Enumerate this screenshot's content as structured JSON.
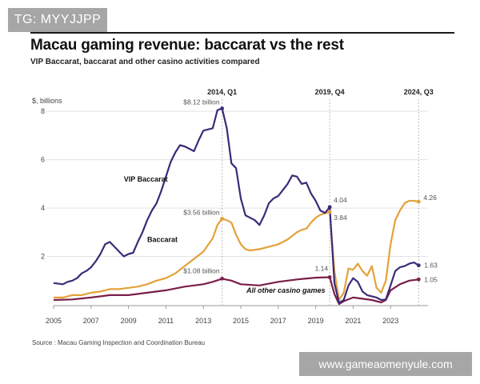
{
  "watermark_top": "TG: MYYJJPP",
  "watermark_bottom": "www.gameaomenyule.com",
  "title": "Macau gaming revenue: baccarat vs the rest",
  "subtitle": "VIP Baccarat, baccarat and other casino activities compared",
  "source": "Source : Macau Gaming Inspection and Coordination Bureau",
  "colors": {
    "vip": "#3d2a78",
    "baccarat": "#e3a23a",
    "other": "#7a1f4a",
    "grid": "#e3e3e3",
    "marker_line": "#bdbdbd"
  },
  "chart_data": {
    "type": "line",
    "title": "Macau gaming revenue: baccarat vs the rest",
    "subtitle": "VIP Baccarat, baccarat and other casino activities compared",
    "ylabel": "$, billions",
    "ylim": [
      0,
      8.7
    ],
    "xlim": [
      2005,
      2025
    ],
    "grid": true,
    "y_ticks": [
      2,
      4,
      6,
      8
    ],
    "x_ticks": [
      "2005",
      "2007",
      "2009",
      "2011",
      "2013",
      "2015",
      "2017",
      "2019",
      "2021",
      "2023"
    ],
    "x_tick_values": [
      2005,
      2007,
      2009,
      2011,
      2013,
      2015,
      2017,
      2019,
      2021,
      2023
    ],
    "period_markers": [
      {
        "x": 2014.0,
        "label": "2014, Q1"
      },
      {
        "x": 2019.75,
        "label": "2019, Q4"
      },
      {
        "x": 2024.5,
        "label": "2024, Q3"
      }
    ],
    "series": [
      {
        "key": "vip",
        "name": "VIP Baccarat",
        "values": [
          [
            2005.0,
            0.9
          ],
          [
            2005.5,
            0.85
          ],
          [
            2005.75,
            0.95
          ],
          [
            2006.0,
            1.0
          ],
          [
            2006.25,
            1.1
          ],
          [
            2006.5,
            1.3
          ],
          [
            2006.75,
            1.4
          ],
          [
            2007.0,
            1.55
          ],
          [
            2007.25,
            1.8
          ],
          [
            2007.5,
            2.1
          ],
          [
            2007.75,
            2.5
          ],
          [
            2008.0,
            2.6
          ],
          [
            2008.25,
            2.4
          ],
          [
            2008.5,
            2.2
          ],
          [
            2008.75,
            2.0
          ],
          [
            2009.0,
            2.1
          ],
          [
            2009.25,
            2.15
          ],
          [
            2009.5,
            2.6
          ],
          [
            2009.75,
            3.0
          ],
          [
            2010.0,
            3.5
          ],
          [
            2010.25,
            3.9
          ],
          [
            2010.5,
            4.2
          ],
          [
            2010.75,
            4.7
          ],
          [
            2011.0,
            5.3
          ],
          [
            2011.25,
            5.9
          ],
          [
            2011.5,
            6.3
          ],
          [
            2011.75,
            6.6
          ],
          [
            2012.0,
            6.55
          ],
          [
            2012.25,
            6.45
          ],
          [
            2012.5,
            6.35
          ],
          [
            2012.75,
            6.8
          ],
          [
            2013.0,
            7.2
          ],
          [
            2013.25,
            7.25
          ],
          [
            2013.5,
            7.3
          ],
          [
            2013.75,
            8.05
          ],
          [
            2014.0,
            8.12
          ],
          [
            2014.25,
            7.3
          ],
          [
            2014.5,
            5.85
          ],
          [
            2014.75,
            5.65
          ],
          [
            2015.0,
            4.4
          ],
          [
            2015.25,
            3.7
          ],
          [
            2015.5,
            3.6
          ],
          [
            2015.75,
            3.5
          ],
          [
            2016.0,
            3.3
          ],
          [
            2016.25,
            3.7
          ],
          [
            2016.5,
            4.2
          ],
          [
            2016.75,
            4.4
          ],
          [
            2017.0,
            4.5
          ],
          [
            2017.25,
            4.75
          ],
          [
            2017.5,
            5.0
          ],
          [
            2017.75,
            5.35
          ],
          [
            2018.0,
            5.3
          ],
          [
            2018.25,
            5.0
          ],
          [
            2018.5,
            5.05
          ],
          [
            2018.75,
            4.6
          ],
          [
            2019.0,
            4.3
          ],
          [
            2019.25,
            3.9
          ],
          [
            2019.5,
            3.8
          ],
          [
            2019.75,
            4.04
          ],
          [
            2020.0,
            0.9
          ],
          [
            2020.25,
            0.08
          ],
          [
            2020.5,
            0.2
          ],
          [
            2020.75,
            0.8
          ],
          [
            2021.0,
            1.1
          ],
          [
            2021.25,
            0.95
          ],
          [
            2021.5,
            0.55
          ],
          [
            2021.75,
            0.4
          ],
          [
            2022.0,
            0.35
          ],
          [
            2022.25,
            0.3
          ],
          [
            2022.5,
            0.2
          ],
          [
            2022.75,
            0.22
          ],
          [
            2023.0,
            0.8
          ],
          [
            2023.25,
            1.4
          ],
          [
            2023.5,
            1.55
          ],
          [
            2023.75,
            1.6
          ],
          [
            2024.0,
            1.7
          ],
          [
            2024.25,
            1.75
          ],
          [
            2024.5,
            1.63
          ]
        ]
      },
      {
        "key": "baccarat",
        "name": "Baccarat",
        "values": [
          [
            2005.0,
            0.3
          ],
          [
            2005.5,
            0.3
          ],
          [
            2006.0,
            0.4
          ],
          [
            2006.5,
            0.4
          ],
          [
            2007.0,
            0.5
          ],
          [
            2007.5,
            0.55
          ],
          [
            2008.0,
            0.65
          ],
          [
            2008.5,
            0.65
          ],
          [
            2009.0,
            0.7
          ],
          [
            2009.5,
            0.75
          ],
          [
            2010.0,
            0.85
          ],
          [
            2010.5,
            1.0
          ],
          [
            2011.0,
            1.1
          ],
          [
            2011.5,
            1.3
          ],
          [
            2012.0,
            1.6
          ],
          [
            2012.5,
            1.9
          ],
          [
            2013.0,
            2.2
          ],
          [
            2013.5,
            2.75
          ],
          [
            2013.75,
            3.3
          ],
          [
            2014.0,
            3.56
          ],
          [
            2014.25,
            3.5
          ],
          [
            2014.5,
            3.4
          ],
          [
            2014.75,
            2.9
          ],
          [
            2015.0,
            2.5
          ],
          [
            2015.25,
            2.3
          ],
          [
            2015.5,
            2.25
          ],
          [
            2016.0,
            2.3
          ],
          [
            2016.5,
            2.4
          ],
          [
            2017.0,
            2.5
          ],
          [
            2017.5,
            2.7
          ],
          [
            2018.0,
            3.0
          ],
          [
            2018.25,
            3.1
          ],
          [
            2018.5,
            3.15
          ],
          [
            2018.75,
            3.4
          ],
          [
            2019.0,
            3.6
          ],
          [
            2019.25,
            3.72
          ],
          [
            2019.5,
            3.78
          ],
          [
            2019.75,
            3.84
          ],
          [
            2020.0,
            1.4
          ],
          [
            2020.25,
            0.2
          ],
          [
            2020.5,
            0.5
          ],
          [
            2020.75,
            1.5
          ],
          [
            2021.0,
            1.45
          ],
          [
            2021.25,
            1.7
          ],
          [
            2021.5,
            1.4
          ],
          [
            2021.75,
            1.2
          ],
          [
            2022.0,
            1.6
          ],
          [
            2022.25,
            0.7
          ],
          [
            2022.5,
            0.5
          ],
          [
            2022.75,
            1.0
          ],
          [
            2023.0,
            2.5
          ],
          [
            2023.25,
            3.5
          ],
          [
            2023.5,
            3.9
          ],
          [
            2023.75,
            4.2
          ],
          [
            2024.0,
            4.3
          ],
          [
            2024.25,
            4.3
          ],
          [
            2024.5,
            4.26
          ]
        ]
      },
      {
        "key": "other",
        "name": "All other casino games",
        "values": [
          [
            2005.0,
            0.2
          ],
          [
            2006.0,
            0.22
          ],
          [
            2007.0,
            0.3
          ],
          [
            2008.0,
            0.4
          ],
          [
            2009.0,
            0.4
          ],
          [
            2010.0,
            0.5
          ],
          [
            2011.0,
            0.6
          ],
          [
            2012.0,
            0.75
          ],
          [
            2013.0,
            0.85
          ],
          [
            2013.5,
            0.95
          ],
          [
            2014.0,
            1.08
          ],
          [
            2014.5,
            1.0
          ],
          [
            2015.0,
            0.85
          ],
          [
            2016.0,
            0.8
          ],
          [
            2017.0,
            0.95
          ],
          [
            2018.0,
            1.05
          ],
          [
            2019.0,
            1.12
          ],
          [
            2019.75,
            1.14
          ],
          [
            2020.0,
            0.45
          ],
          [
            2020.25,
            0.03
          ],
          [
            2020.5,
            0.15
          ],
          [
            2021.0,
            0.3
          ],
          [
            2021.5,
            0.25
          ],
          [
            2022.0,
            0.2
          ],
          [
            2022.5,
            0.1
          ],
          [
            2022.75,
            0.2
          ],
          [
            2023.0,
            0.6
          ],
          [
            2023.5,
            0.85
          ],
          [
            2024.0,
            1.0
          ],
          [
            2024.5,
            1.05
          ]
        ]
      }
    ],
    "annotations": [
      {
        "text": "$8.12 billion",
        "x": 2014.0,
        "y": 8.12,
        "series": "vip"
      },
      {
        "text": "$3.56 billion",
        "x": 2014.0,
        "y": 3.56,
        "series": "baccarat"
      },
      {
        "text": "$1.08 billion",
        "x": 2014.0,
        "y": 1.08,
        "series": "other"
      },
      {
        "text": "4.04",
        "x": 2019.75,
        "y": 4.04,
        "series": "vip"
      },
      {
        "text": "3.84",
        "x": 2019.75,
        "y": 3.84,
        "series": "baccarat"
      },
      {
        "text": "1.14",
        "x": 2019.75,
        "y": 1.14,
        "series": "other"
      },
      {
        "text": "4.26",
        "x": 2024.5,
        "y": 4.26,
        "series": "baccarat"
      },
      {
        "text": "1.63",
        "x": 2024.5,
        "y": 1.63,
        "series": "vip"
      },
      {
        "text": "1.05",
        "x": 2024.5,
        "y": 1.05,
        "series": "other"
      }
    ],
    "series_labels": [
      {
        "text": "VIP Baccarat",
        "series": "vip"
      },
      {
        "text": "Baccarat",
        "series": "baccarat"
      },
      {
        "text": "All other casino games",
        "series": "other"
      }
    ]
  }
}
